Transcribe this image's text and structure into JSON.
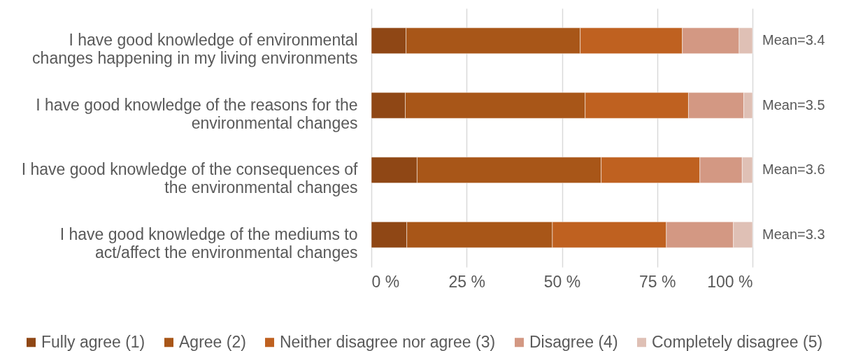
{
  "chart_data": {
    "type": "bar",
    "orientation": "horizontal",
    "stacked": true,
    "categories": [
      "I have good knowledge of environmental changes happening in my living environments",
      "I have good knowledge of the reasons for the environmental changes",
      "I have good knowledge of the consequences of the environmental changes",
      "I have good knowledge of the mediums to act/affect the environmental changes"
    ],
    "series": [
      {
        "name": "Fully agree (1)",
        "color": "#8f4715",
        "values": [
          9.1,
          8.9,
          12.0,
          9.3
        ]
      },
      {
        "name": "Agree (2)",
        "color": "#a85618",
        "values": [
          45.7,
          47.2,
          48.3,
          38.2
        ]
      },
      {
        "name": "Neither disagree nor agree (3)",
        "color": "#bf6120",
        "values": [
          26.8,
          27.1,
          25.9,
          29.9
        ]
      },
      {
        "name": "Disagree (4)",
        "color": "#d39883",
        "values": [
          14.9,
          14.5,
          11.1,
          17.6
        ]
      },
      {
        "name": "Completely disagree (5)",
        "color": "#dfc0b5",
        "values": [
          3.5,
          2.3,
          2.7,
          5.0
        ]
      }
    ],
    "xlim": [
      0,
      100
    ],
    "xticks": [
      {
        "value": 0,
        "label": "0 %"
      },
      {
        "value": 25,
        "label": "25 %"
      },
      {
        "value": 50,
        "label": "50 %"
      },
      {
        "value": 75,
        "label": "75 %"
      },
      {
        "value": 100,
        "label": "100 %"
      }
    ],
    "grid": "x",
    "legend": "bottom",
    "annotations": [
      "Mean=3.4",
      "Mean=3.5",
      "Mean=3.6",
      "Mean=3.3"
    ]
  }
}
